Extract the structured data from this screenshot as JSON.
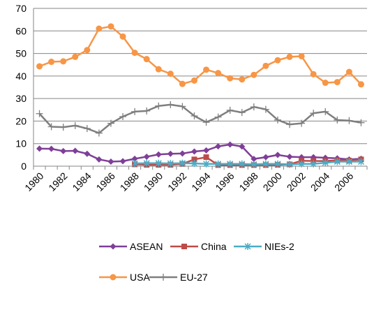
{
  "chart_data": {
    "type": "line",
    "categories": [
      "1980",
      null,
      "1982",
      null,
      "1984",
      null,
      "1986",
      null,
      "1988",
      null,
      "1990",
      null,
      "1992",
      null,
      "1994",
      null,
      "1996",
      null,
      "1998",
      null,
      "2000",
      null,
      "2002",
      null,
      "2004",
      null,
      "2006",
      null
    ],
    "ylim": [
      0,
      70
    ],
    "yticks": [
      0,
      10,
      20,
      30,
      40,
      50,
      60,
      70
    ],
    "grid": true,
    "series": [
      {
        "name": "ASEAN",
        "color": "#7f3f98",
        "marker": "diamond",
        "values": [
          7.8,
          7.7,
          6.7,
          6.8,
          5.5,
          3,
          2,
          2.2,
          3.3,
          4.2,
          5.2,
          5.5,
          5.6,
          6.5,
          7,
          8.8,
          9.6,
          8.7,
          3.2,
          4,
          5,
          4.2,
          4,
          4,
          3.7,
          3.5,
          3,
          3.3
        ]
      },
      {
        "name": "China",
        "color": "#be4b48",
        "marker": "square",
        "values": [
          null,
          null,
          null,
          null,
          null,
          null,
          null,
          null,
          0.8,
          0.6,
          0.6,
          0.6,
          1,
          3,
          4,
          0.5,
          0.5,
          0.5,
          0.5,
          0.5,
          0.6,
          0.8,
          2.4,
          2.3,
          2.3,
          2.6,
          2.5,
          3
        ]
      },
      {
        "name": "NIEs-2",
        "color": "#4bacc6",
        "marker": "star",
        "values": [
          null,
          null,
          null,
          null,
          null,
          null,
          null,
          null,
          1.2,
          1.3,
          1.3,
          1.2,
          1.3,
          1.2,
          1,
          1,
          1,
          1,
          0.8,
          1,
          1,
          0.8,
          1,
          1,
          1.5,
          2,
          2,
          2
        ]
      },
      {
        "name": "USA",
        "color": "#f79646",
        "marker": "circle",
        "values": [
          44.3,
          46.3,
          46.5,
          48.5,
          51.5,
          61,
          62,
          57.5,
          50.3,
          47.5,
          43,
          41,
          36.5,
          38,
          42.8,
          41.3,
          39,
          38.5,
          40.5,
          44.5,
          47,
          48.5,
          48.8,
          40.8,
          37,
          37.3,
          41.8,
          36.3
        ]
      },
      {
        "name": "EU-27",
        "color": "#7f7f7f",
        "marker": "plus",
        "values": [
          23.3,
          17.5,
          17.3,
          18,
          16.7,
          14.7,
          19,
          22,
          24.2,
          24.5,
          26.7,
          27.3,
          26.5,
          22.3,
          19.5,
          21.8,
          24.8,
          23.8,
          26.3,
          25.2,
          20.5,
          18.5,
          19,
          23.5,
          24.2,
          20.5,
          20.2,
          19.3
        ]
      }
    ]
  }
}
